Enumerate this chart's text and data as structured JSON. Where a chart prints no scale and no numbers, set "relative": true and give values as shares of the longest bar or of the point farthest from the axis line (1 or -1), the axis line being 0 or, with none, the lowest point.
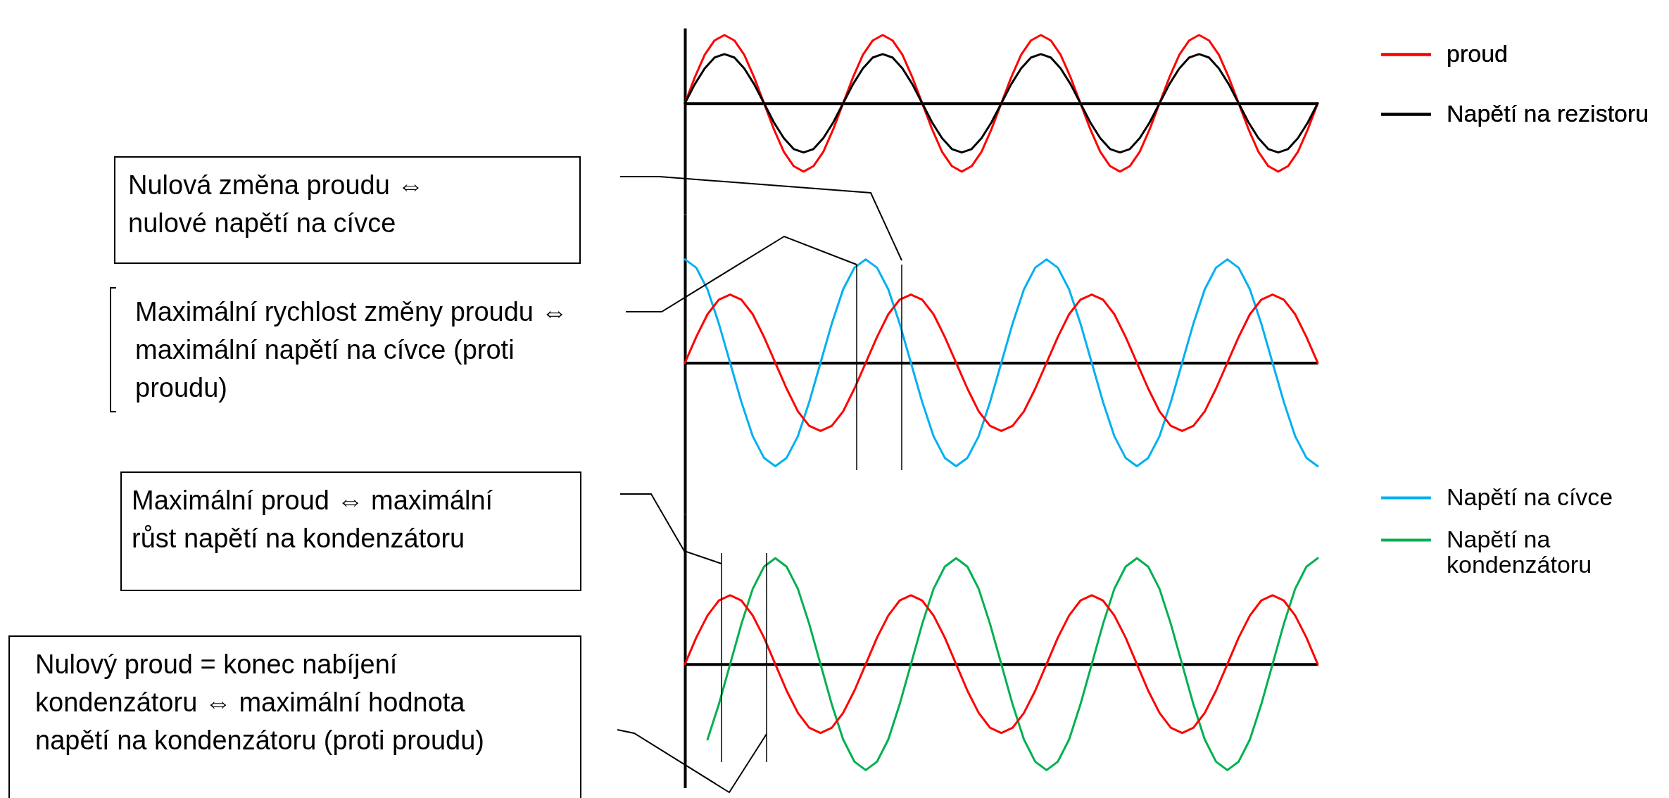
{
  "chart_data": [
    {
      "type": "line",
      "relative": true,
      "legend": "top right",
      "marker": "none",
      "categories": [
        null,
        null,
        null,
        null,
        null,
        null,
        null,
        null,
        null,
        null,
        null,
        null,
        null,
        null,
        null,
        null,
        null,
        null,
        null,
        null,
        null,
        null,
        null,
        null,
        null,
        null,
        null,
        null,
        null,
        null,
        null,
        null,
        null,
        null,
        null,
        null,
        null,
        null,
        null,
        null,
        null,
        null,
        null,
        null,
        null,
        null,
        null,
        null,
        null,
        null,
        null,
        null,
        null,
        null,
        null,
        null,
        null,
        null,
        null,
        null,
        null,
        null,
        null,
        null,
        null
      ],
      "series": [
        {
          "name": "proud",
          "color": "#ff0000",
          "values": [
            0,
            0.38,
            0.71,
            0.92,
            1,
            0.92,
            0.71,
            0.38,
            0,
            -0.38,
            -0.71,
            -0.92,
            -1,
            -0.92,
            -0.71,
            -0.38,
            0,
            0.38,
            0.71,
            0.92,
            1,
            0.92,
            0.71,
            0.38,
            0,
            -0.38,
            -0.71,
            -0.92,
            -1,
            -0.92,
            -0.71,
            -0.38,
            0,
            0.38,
            0.71,
            0.92,
            1,
            0.92,
            0.71,
            0.38,
            0,
            -0.38,
            -0.71,
            -0.92,
            -1,
            -0.92,
            -0.71,
            -0.38,
            0,
            0.38,
            0.71,
            0.92,
            1,
            0.92,
            0.71,
            0.38,
            0,
            -0.38,
            -0.71,
            -0.92,
            -1,
            -0.92,
            -0.71,
            -0.38,
            0
          ]
        },
        {
          "name": "Napětí na rezistoru",
          "color": "#000000",
          "values": [
            0,
            0.28,
            0.51,
            0.67,
            0.72,
            0.67,
            0.51,
            0.28,
            0,
            -0.28,
            -0.51,
            -0.67,
            -0.72,
            -0.67,
            -0.51,
            -0.28,
            0,
            0.28,
            0.51,
            0.67,
            0.72,
            0.67,
            0.51,
            0.28,
            0,
            -0.28,
            -0.51,
            -0.67,
            -0.72,
            -0.67,
            -0.51,
            -0.28,
            0,
            0.28,
            0.51,
            0.67,
            0.72,
            0.67,
            0.51,
            0.28,
            0,
            -0.28,
            -0.51,
            -0.67,
            -0.72,
            -0.67,
            -0.51,
            -0.28,
            0,
            0.28,
            0.51,
            0.67,
            0.72,
            0.67,
            0.51,
            0.28,
            0,
            -0.28,
            -0.51,
            -0.67,
            -0.72,
            -0.67,
            -0.51,
            -0.28,
            0
          ]
        }
      ]
    },
    {
      "type": "line",
      "relative": true,
      "legend": "bottom right",
      "marker": "none",
      "categories": [
        null,
        null,
        null,
        null,
        null,
        null,
        null,
        null,
        null,
        null,
        null,
        null,
        null,
        null,
        null,
        null,
        null,
        null,
        null,
        null,
        null,
        null,
        null,
        null,
        null,
        null,
        null,
        null,
        null,
        null,
        null,
        null,
        null,
        null,
        null,
        null,
        null,
        null,
        null,
        null,
        null,
        null,
        null,
        null,
        null,
        null,
        null,
        null,
        null,
        null,
        null,
        null,
        null,
        null,
        null,
        null,
        null
      ],
      "series": [
        {
          "name": "Napětí na cívce",
          "color": "#00b0f0",
          "values": [
            1,
            0.92,
            0.71,
            0.38,
            0,
            -0.38,
            -0.71,
            -0.92,
            -1,
            -0.92,
            -0.71,
            -0.38,
            0,
            0.38,
            0.71,
            0.92,
            1,
            0.92,
            0.71,
            0.38,
            0,
            -0.38,
            -0.71,
            -0.92,
            -1,
            -0.92,
            -0.71,
            -0.38,
            0,
            0.38,
            0.71,
            0.92,
            1,
            0.92,
            0.71,
            0.38,
            0,
            -0.38,
            -0.71,
            -0.92,
            -1,
            -0.92,
            -0.71,
            -0.38,
            0,
            0.38,
            0.71,
            0.92,
            1,
            0.92,
            0.71,
            0.38,
            0,
            -0.38,
            -0.71,
            -0.92,
            -1
          ]
        },
        {
          "color": "#ff0000",
          "values": [
            0,
            0.25,
            0.47,
            0.61,
            0.66,
            0.61,
            0.47,
            0.25,
            0,
            -0.25,
            -0.47,
            -0.61,
            -0.66,
            -0.61,
            -0.47,
            -0.25,
            0,
            0.25,
            0.47,
            0.61,
            0.66,
            0.61,
            0.47,
            0.25,
            0,
            -0.25,
            -0.47,
            -0.61,
            -0.66,
            -0.61,
            -0.47,
            -0.25,
            0,
            0.25,
            0.47,
            0.61,
            0.66,
            0.61,
            0.47,
            0.25,
            0,
            -0.25,
            -0.47,
            -0.61,
            -0.66,
            -0.61,
            -0.47,
            -0.25,
            0,
            0.25,
            0.47,
            0.61,
            0.66,
            0.61,
            0.47,
            0.25,
            0
          ]
        }
      ],
      "annotations": [
        "Nulová změna proudu ⇔ nulové napětí na cívce",
        "Maximální rychlost změny proudu ⇔ maximální napětí na cívce (proti proudu)"
      ]
    },
    {
      "type": "line",
      "relative": true,
      "legend": "top right",
      "marker": "none",
      "categories": [
        null,
        null,
        null,
        null,
        null,
        null,
        null,
        null,
        null,
        null,
        null,
        null,
        null,
        null,
        null,
        null,
        null,
        null,
        null,
        null,
        null,
        null,
        null,
        null,
        null,
        null,
        null,
        null,
        null,
        null,
        null,
        null,
        null,
        null,
        null,
        null,
        null,
        null,
        null,
        null,
        null,
        null,
        null,
        null,
        null,
        null,
        null,
        null,
        null,
        null,
        null,
        null,
        null,
        null,
        null,
        null,
        null
      ],
      "series": [
        {
          "name": "Napětí na kondenzátoru",
          "color": "#00b050",
          "values": [
            null,
            null,
            -0.71,
            -0.38,
            0,
            0.38,
            0.71,
            0.92,
            1,
            0.92,
            0.71,
            0.38,
            0,
            -0.38,
            -0.71,
            -0.92,
            -1,
            -0.92,
            -0.71,
            -0.38,
            0,
            0.38,
            0.71,
            0.92,
            1,
            0.92,
            0.71,
            0.38,
            0,
            -0.38,
            -0.71,
            -0.92,
            -1,
            -0.92,
            -0.71,
            -0.38,
            0,
            0.38,
            0.71,
            0.92,
            1,
            0.92,
            0.71,
            0.38,
            0,
            -0.38,
            -0.71,
            -0.92,
            -1,
            -0.92,
            -0.71,
            -0.38,
            0,
            0.38,
            0.71,
            0.92,
            1
          ]
        },
        {
          "color": "#ff0000",
          "values": [
            0,
            0.25,
            0.46,
            0.6,
            0.65,
            0.6,
            0.46,
            0.25,
            0,
            -0.25,
            -0.46,
            -0.6,
            -0.65,
            -0.6,
            -0.46,
            -0.25,
            0,
            0.25,
            0.46,
            0.6,
            0.65,
            0.6,
            0.46,
            0.25,
            0,
            -0.25,
            -0.46,
            -0.6,
            -0.65,
            -0.6,
            -0.46,
            -0.25,
            0,
            0.25,
            0.46,
            0.6,
            0.65,
            0.6,
            0.46,
            0.25,
            0,
            -0.25,
            -0.46,
            -0.6,
            -0.65,
            -0.6,
            -0.46,
            -0.25,
            0,
            0.25,
            0.46,
            0.6,
            0.65,
            0.6,
            0.46,
            0.25,
            0
          ]
        }
      ],
      "annotations": [
        "Maximální proud ⇔ maximální růst napětí na kondenzátoru",
        "Nulový proud = konec nabíjení kondenzátoru ⇔ maximální hodnota napětí na kondenzátoru (proti proudu)"
      ]
    }
  ]
}
